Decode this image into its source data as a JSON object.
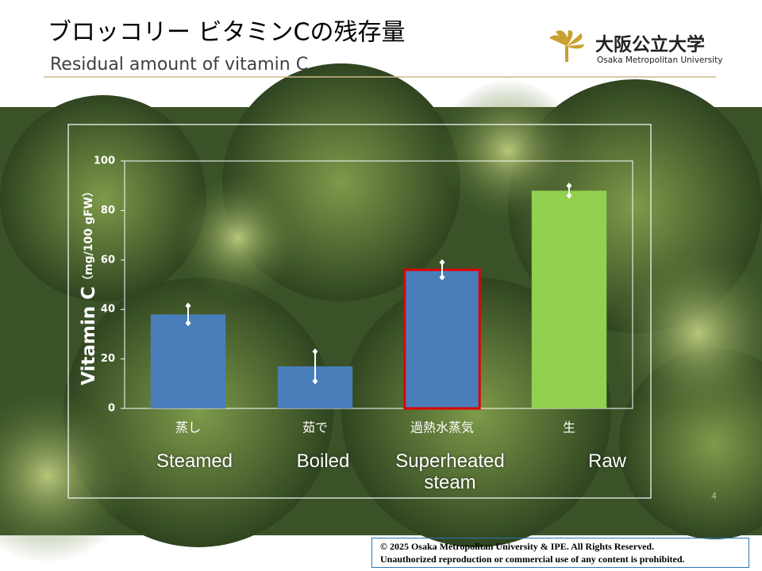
{
  "header": {
    "title_ja": "ブロッコリー ビタミンCの残存量",
    "title_en": "Residual amount of vitamin C"
  },
  "logo": {
    "name_ja": "大阪公立大学",
    "name_en": "Osaka Metropolitan University"
  },
  "chart_data": {
    "type": "bar",
    "categories": [
      "蒸し",
      "茹で",
      "過熱水蒸気",
      "生"
    ],
    "category_labels_en": [
      "Steamed",
      "Boiled",
      "Superheated steam",
      "Raw"
    ],
    "values": [
      38,
      17,
      56,
      88
    ],
    "errors": [
      3.5,
      6,
      3,
      2
    ],
    "colors": [
      "#4a7ebb",
      "#4a7ebb",
      "#4a7ebb",
      "#92d050"
    ],
    "outline_colors": [
      null,
      null,
      "#e00000",
      null
    ],
    "y_label": "Vitamin C",
    "y_unit": "（mg/100 gFW）",
    "ylim": [
      0,
      100
    ],
    "yticks": [
      0,
      20,
      40,
      60,
      80,
      100
    ]
  },
  "page_number": "4",
  "footer": {
    "line1": "© 2025 Osaka Metropolitan University & IPE. All Rights Reserved.",
    "line2": "Unauthorized reproduction or commercial use of any content is prohibited."
  }
}
